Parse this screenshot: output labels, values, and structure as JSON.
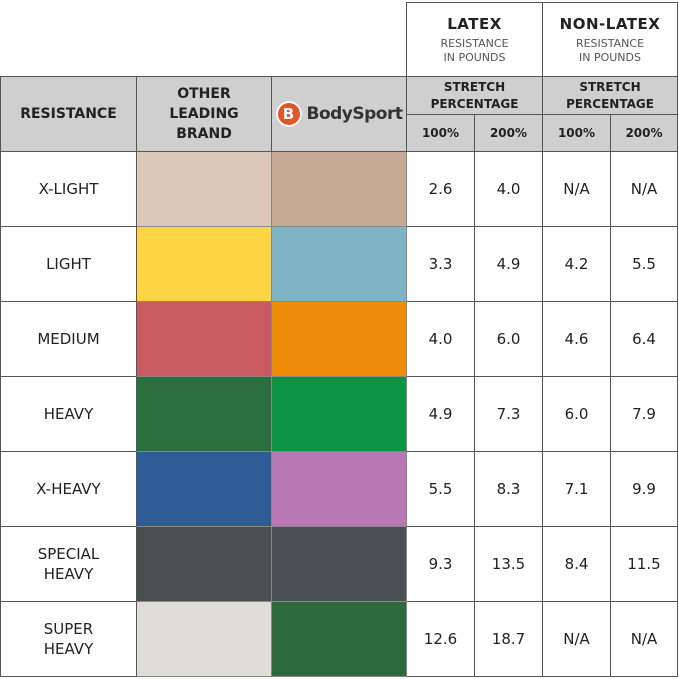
{
  "groups": [
    {
      "title": "LATEX",
      "sub1": "RESISTANCE",
      "sub2": "IN POUNDS"
    },
    {
      "title": "NON-LATEX",
      "sub1": "RESISTANCE",
      "sub2": "IN POUNDS"
    }
  ],
  "header": {
    "resistance": "RESISTANCE",
    "other_l1": "OTHER",
    "other_l2": "LEADING",
    "other_l3": "BRAND",
    "brand_logo_text": "BodySport",
    "brand_logo_letter": "B",
    "stretch_l1": "STRETCH",
    "stretch_l2": "PERCENTAGE",
    "p100": "100%",
    "p200": "200%"
  },
  "rows": [
    {
      "l1": "X-LIGHT",
      "l2": "",
      "other_color": "#dcc8b6",
      "bodysport_color": "#c5a994",
      "latex100": "2.6",
      "latex200": "4.0",
      "non100": "N/A",
      "non200": "N/A"
    },
    {
      "l1": "LIGHT",
      "l2": "",
      "other_color": "#fcd444",
      "bodysport_color": "#7fb3c6",
      "latex100": "3.3",
      "latex200": "4.9",
      "non100": "4.2",
      "non200": "5.5"
    },
    {
      "l1": "MEDIUM",
      "l2": "",
      "other_color": "#c85a60",
      "bodysport_color": "#ee8c0a",
      "latex100": "4.0",
      "latex200": "6.0",
      "non100": "4.6",
      "non200": "6.4"
    },
    {
      "l1": "HEAVY",
      "l2": "",
      "other_color": "#2a6e3e",
      "bodysport_color": "#0b9444",
      "latex100": "4.9",
      "latex200": "7.3",
      "non100": "6.0",
      "non200": "7.9"
    },
    {
      "l1": "X-HEAVY",
      "l2": "",
      "other_color": "#2e5b95",
      "bodysport_color": "#b878b4",
      "latex100": "5.5",
      "latex200": "8.3",
      "non100": "7.1",
      "non200": "9.9"
    },
    {
      "l1": "SPECIAL",
      "l2": "HEAVY",
      "other_color": "#4a4f52",
      "bodysport_color": "#4b5054",
      "latex100": "9.3",
      "latex200": "13.5",
      "non100": "8.4",
      "non200": "11.5"
    },
    {
      "l1": "SUPER",
      "l2": "HEAVY",
      "other_color": "#e0ddd8",
      "bodysport_color": "#2c6a3c",
      "latex100": "12.6",
      "latex200": "18.7",
      "non100": "N/A",
      "non200": "N/A"
    }
  ]
}
